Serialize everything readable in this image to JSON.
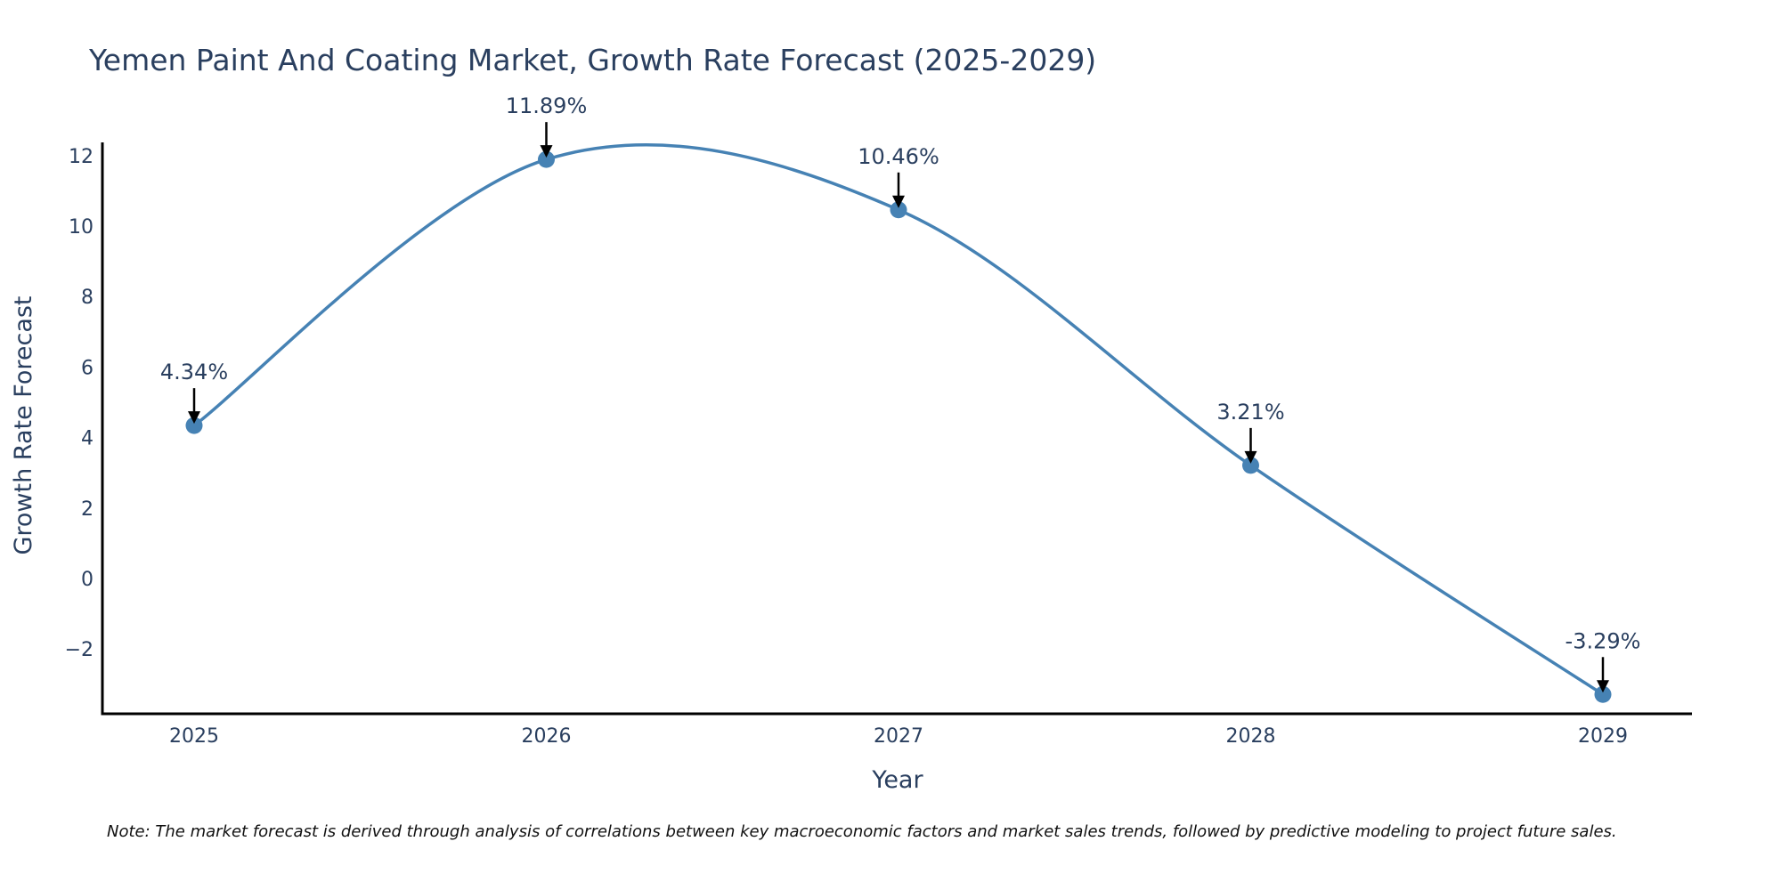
{
  "chart_data": {
    "type": "line",
    "title": "Yemen Paint And Coating Market, Growth Rate Forecast (2025-2029)",
    "xlabel": "Year",
    "ylabel": "Growth Rate Forecast",
    "categories": [
      "2025",
      "2026",
      "2027",
      "2028",
      "2029"
    ],
    "series": [
      {
        "name": "Growth Rate Forecast",
        "values": [
          4.34,
          11.89,
          10.46,
          3.21,
          -3.29
        ],
        "labels": [
          "4.34%",
          "11.89%",
          "10.46%",
          "3.21%",
          "-3.29%"
        ]
      }
    ],
    "yticks": [
      -2,
      0,
      2,
      4,
      6,
      8,
      10,
      12
    ],
    "ytick_labels": [
      "−2",
      "0",
      "2",
      "4",
      "6",
      "8",
      "10",
      "12"
    ],
    "ylim": [
      -3.8,
      12.4
    ],
    "grid": false,
    "line_color": "#4682b4",
    "marker_color": "#4682b4",
    "arrow_color": "#000000",
    "line_shape": "spline",
    "note": "Note: The market forecast is derived through analysis of correlations between key macroeconomic factors and market sales trends, followed by predictive modeling to project future sales."
  }
}
